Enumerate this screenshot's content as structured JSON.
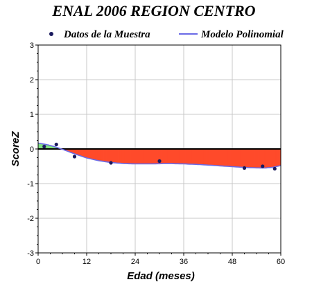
{
  "chart_data": {
    "type": "scatter",
    "title": "ENAL 2006 REGION CENTRO",
    "xlabel": "Edad (meses)",
    "ylabel": "ScoreZ",
    "xlim": [
      0,
      60
    ],
    "ylim": [
      -3,
      3
    ],
    "xticks": [
      0,
      12,
      24,
      36,
      48,
      60
    ],
    "yticks": [
      -3,
      -2,
      -1,
      0,
      1,
      2,
      3
    ],
    "grid": true,
    "legend_position": "top",
    "series": [
      {
        "name": "Datos de la Muestra",
        "kind": "points",
        "color": "#1a1a5e",
        "points": [
          {
            "x": 1.5,
            "y": 0.07
          },
          {
            "x": 4.5,
            "y": 0.13
          },
          {
            "x": 9,
            "y": -0.22
          },
          {
            "x": 18,
            "y": -0.4
          },
          {
            "x": 30,
            "y": -0.35
          },
          {
            "x": 51,
            "y": -0.55
          },
          {
            "x": 55.5,
            "y": -0.5
          },
          {
            "x": 58.5,
            "y": -0.57
          }
        ]
      },
      {
        "name": "Modelo Polinomial",
        "kind": "line",
        "color": "#6a6ae6",
        "points": [
          {
            "x": 0,
            "y": 0.17
          },
          {
            "x": 2,
            "y": 0.13
          },
          {
            "x": 4,
            "y": 0.07
          },
          {
            "x": 6,
            "y": -0.01
          },
          {
            "x": 9,
            "y": -0.14
          },
          {
            "x": 12,
            "y": -0.26
          },
          {
            "x": 15,
            "y": -0.34
          },
          {
            "x": 18,
            "y": -0.39
          },
          {
            "x": 21,
            "y": -0.42
          },
          {
            "x": 24,
            "y": -0.43
          },
          {
            "x": 28,
            "y": -0.43
          },
          {
            "x": 32,
            "y": -0.42
          },
          {
            "x": 36,
            "y": -0.43
          },
          {
            "x": 40,
            "y": -0.45
          },
          {
            "x": 44,
            "y": -0.48
          },
          {
            "x": 48,
            "y": -0.51
          },
          {
            "x": 52,
            "y": -0.54
          },
          {
            "x": 56,
            "y": -0.55
          },
          {
            "x": 58,
            "y": -0.53
          },
          {
            "x": 60,
            "y": -0.48
          }
        ]
      }
    ],
    "fill_below_zero_color": "#ff4a2a",
    "fill_above_zero_color": "#7fe07f"
  }
}
